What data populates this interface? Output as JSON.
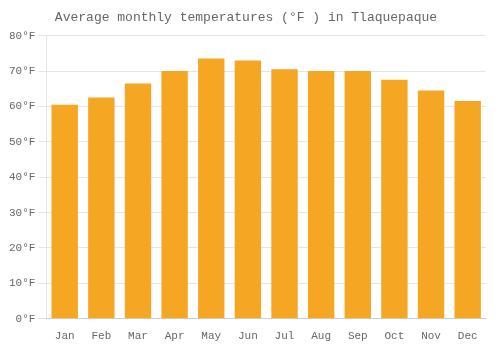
{
  "chart_data": {
    "type": "bar",
    "title": "Average monthly temperatures (°F ) in Tlaquepaque",
    "categories": [
      "Jan",
      "Feb",
      "Mar",
      "Apr",
      "May",
      "Jun",
      "Jul",
      "Aug",
      "Sep",
      "Oct",
      "Nov",
      "Dec"
    ],
    "values": [
      60.5,
      62.5,
      66.5,
      70.0,
      73.5,
      73.0,
      70.5,
      70.0,
      70.0,
      67.5,
      64.5,
      61.5
    ],
    "color": "#F5A623",
    "ylim": [
      0,
      80
    ],
    "yticks": [
      {
        "value": 0,
        "label": "0°F"
      },
      {
        "value": 10,
        "label": "10°F"
      },
      {
        "value": 20,
        "label": "20°F"
      },
      {
        "value": 30,
        "label": "30°F"
      },
      {
        "value": 40,
        "label": "40°F"
      },
      {
        "value": 50,
        "label": "50°F"
      },
      {
        "value": 60,
        "label": "60°F"
      },
      {
        "value": 70,
        "label": "70°F"
      },
      {
        "value": 80,
        "label": "80°F"
      }
    ],
    "grid": "y"
  }
}
